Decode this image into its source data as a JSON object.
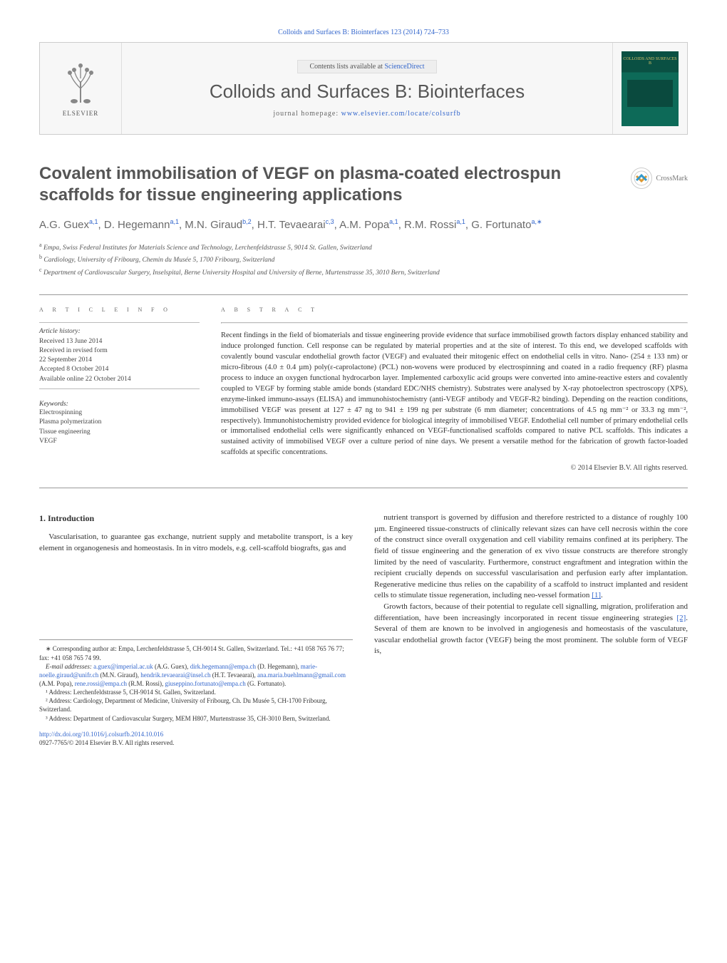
{
  "page": {
    "top_citation": "Colloids and Surfaces B: Biointerfaces 123 (2014) 724–733",
    "contents_prefix": "Contents lists available at ",
    "contents_link": "ScienceDirect",
    "journal_title": "Colloids and Surfaces B: Biointerfaces",
    "homepage_prefix": "journal homepage: ",
    "homepage_url": "www.elsevier.com/locate/colsurfb",
    "elsevier_word": "ELSEVIER",
    "cover_text": "COLLOIDS AND SURFACES B",
    "crossmark_label": "CrossMark"
  },
  "colors": {
    "link": "#3366cc",
    "muted_text": "#555555",
    "body_text": "#333333",
    "rule": "#999999",
    "cover_dark": "#0a5043",
    "cover_light": "#0d6a58",
    "elsevier_orange": "#ec6608"
  },
  "article": {
    "title": "Covalent immobilisation of VEGF on plasma-coated electrospun scaffolds for tissue engineering applications",
    "authors_html": "A.G. Guex<sup>a,1</sup>, D. Hegemann<sup>a,1</sup>, M.N. Giraud<sup>b,2</sup>, H.T. Tevaearai<sup>c,3</sup>, A.M. Popa<sup>a,1</sup>, R.M. Rossi<sup>a,1</sup>, G. Fortunato<sup>a,∗</sup>",
    "affiliations": [
      {
        "mark": "a",
        "text": "Empa, Swiss Federal Institutes for Materials Science and Technology, Lerchenfeldstrasse 5, 9014 St. Gallen, Switzerland"
      },
      {
        "mark": "b",
        "text": "Cardiology, University of Fribourg, Chemin du Musée 5, 1700 Fribourg, Switzerland"
      },
      {
        "mark": "c",
        "text": "Department of Cardiovascular Surgery, Inselspital, Berne University Hospital and University of Berne, Murtenstrasse 35, 3010 Bern, Switzerland"
      }
    ]
  },
  "info": {
    "label_article_info": "a r t i c l e   i n f o",
    "label_abstract": "a b s t r a c t",
    "history_label": "Article history:",
    "history": [
      "Received 13 June 2014",
      "Received in revised form",
      "22 September 2014",
      "Accepted 8 October 2014",
      "Available online 22 October 2014"
    ],
    "keywords_label": "Keywords:",
    "keywords": [
      "Electrospinning",
      "Plasma polymerization",
      "Tissue engineering",
      "VEGF"
    ]
  },
  "abstract": "Recent findings in the field of biomaterials and tissue engineering provide evidence that surface immobilised growth factors display enhanced stability and induce prolonged function. Cell response can be regulated by material properties and at the site of interest. To this end, we developed scaffolds with covalently bound vascular endothelial growth factor (VEGF) and evaluated their mitogenic effect on endothelial cells in vitro. Nano- (254 ± 133 nm) or micro-fibrous (4.0 ± 0.4 µm) poly(ε-caprolactone) (PCL) non-wovens were produced by electrospinning and coated in a radio frequency (RF) plasma process to induce an oxygen functional hydrocarbon layer. Implemented carboxylic acid groups were converted into amine-reactive esters and covalently coupled to VEGF by forming stable amide bonds (standard EDC/NHS chemistry). Substrates were analysed by X-ray photoelectron spectroscopy (XPS), enzyme-linked immuno-assays (ELISA) and immunohistochemistry (anti-VEGF antibody and VEGF-R2 binding). Depending on the reaction conditions, immobilised VEGF was present at 127 ± 47 ng to 941 ± 199 ng per substrate (6 mm diameter; concentrations of 4.5 ng mm⁻² or 33.3 ng mm⁻², respectively). Immunohistochemistry provided evidence for biological integrity of immobilised VEGF. Endothelial cell number of primary endothelial cells or immortalised endothelial cells were significantly enhanced on VEGF-functionalised scaffolds compared to native PCL scaffolds. This indicates a sustained activity of immobilised VEGF over a culture period of nine days. We present a versatile method for the fabrication of growth factor-loaded scaffolds at specific concentrations.",
  "copyright": "© 2014 Elsevier B.V. All rights reserved.",
  "section1": {
    "heading": "1.  Introduction",
    "p1": "Vascularisation, to guarantee gas exchange, nutrient supply and metabolite transport, is a key element in organogenesis and homeostasis. In in vitro models, e.g. cell-scaffold biografts, gas and",
    "p2": "nutrient transport is governed by diffusion and therefore restricted to a distance of roughly 100 µm. Engineered tissue-constructs of clinically relevant sizes can have cell necrosis within the core of the construct since overall oxygenation and cell viability remains confined at its periphery. The field of tissue engineering and the generation of ex vivo tissue constructs are therefore strongly limited by the need of vascularity. Furthermore, construct engraftment and integration within the recipient crucially depends on successful vascularisation and perfusion early after implantation. Regenerative medicine thus relies on the capability of a scaffold to instruct implanted and resident cells to stimulate tissue regeneration, including neo-vessel formation ",
    "p2_ref": "[1]",
    "p2_tail": ".",
    "p3a": "Growth factors, because of their potential to regulate cell signalling, migration, proliferation and differentiation, have been increasingly incorporated in recent tissue engineering strategies ",
    "p3_ref": "[2]",
    "p3b": ". Several of them are known to be involved in angiogenesis and homeostasis of the vasculature, vascular endothelial growth factor (VEGF) being the most prominent. The soluble form of VEGF is,"
  },
  "footnotes": {
    "corr": "∗ Corresponding author at: Empa, Lerchenfeldstrasse 5, CH-9014 St. Gallen, Switzerland. Tel.: +41 058 765 76 77; fax: +41 058 765 74 99.",
    "email_label": "E-mail addresses: ",
    "emails": [
      {
        "addr": "a.guex@imperial.ac.uk",
        "who": "(A.G. Guex)"
      },
      {
        "addr": "dirk.hegemann@empa.ch",
        "who": "(D. Hegemann)"
      },
      {
        "addr": "marie-noelle.giraud@unifr.ch",
        "who": "(M.N. Giraud)"
      },
      {
        "addr": "hendrik.tevaearai@insel.ch",
        "who": "(H.T. Tevaearai)"
      },
      {
        "addr": "ana.maria.buehlmann@gmail.com",
        "who": "(A.M. Popa)"
      },
      {
        "addr": "rene.rossi@empa.ch",
        "who": "(R.M. Rossi)"
      },
      {
        "addr": "giuseppino.fortunato@empa.ch",
        "who": "(G. Fortunato)."
      }
    ],
    "addr1": "¹ Address: Lerchenfeldstrasse 5, CH-9014 St. Gallen, Switzerland.",
    "addr2": "² Address: Cardiology, Department of Medicine, University of Fribourg, Ch. Du Musée 5, CH-1700 Fribourg, Switzerland.",
    "addr3": "³ Address: Department of Cardiovascular Surgery, MEM H807, Murtenstrasse 35, CH-3010 Bern, Switzerland.",
    "doi_url": "http://dx.doi.org/10.1016/j.colsurfb.2014.10.016",
    "issn_line": "0927-7765/© 2014 Elsevier B.V. All rights reserved."
  }
}
